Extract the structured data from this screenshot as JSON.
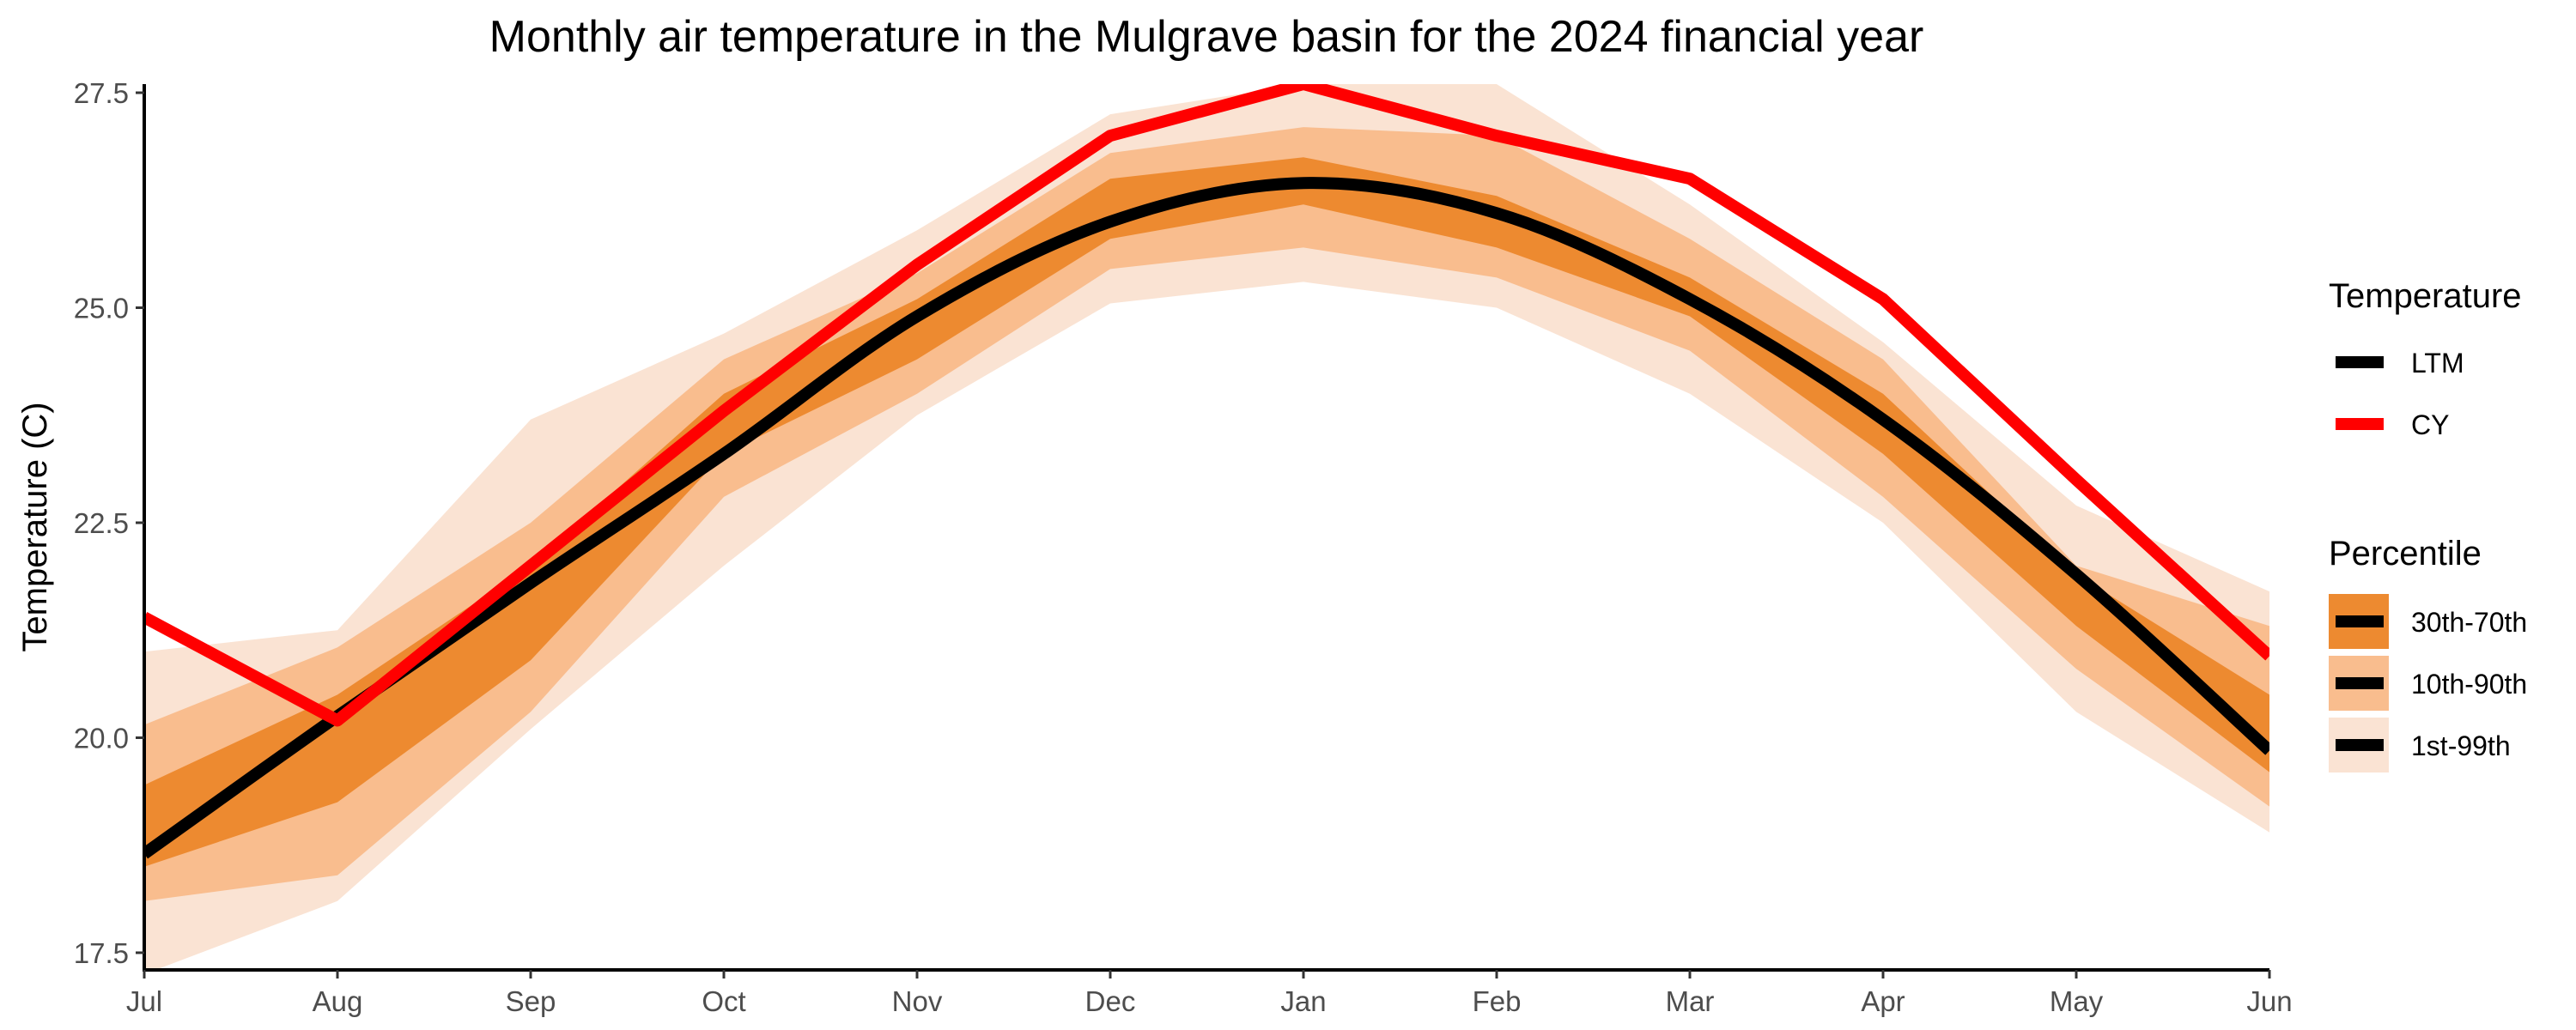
{
  "chart_data": {
    "type": "line",
    "title": "Monthly air temperature in the Mulgrave basin for the 2024 financial year",
    "xlabel": "",
    "ylabel": "Temperature (C)",
    "categories": [
      "Jul",
      "Aug",
      "Sep",
      "Oct",
      "Nov",
      "Dec",
      "Jan",
      "Feb",
      "Mar",
      "Apr",
      "May",
      "Jun"
    ],
    "ylim": [
      17.3,
      27.6
    ],
    "yticks": [
      "17.5",
      "20.0",
      "22.5",
      "25.0",
      "27.5"
    ],
    "ytick_values": [
      17.5,
      20.0,
      22.5,
      25.0,
      27.5
    ],
    "grid": false,
    "legend_position": "right",
    "bands": [
      {
        "name": "1st-99th",
        "color": "#fae3d3",
        "lower": [
          17.25,
          18.1,
          20.1,
          22.0,
          23.75,
          25.05,
          25.3,
          25.0,
          24.0,
          22.5,
          20.3,
          18.9
        ],
        "upper": [
          21.0,
          21.25,
          23.7,
          24.7,
          25.9,
          27.25,
          27.6,
          27.6,
          26.2,
          24.6,
          22.7,
          21.7
        ]
      },
      {
        "name": "10th-90th",
        "color": "#f9bd8e",
        "lower": [
          18.1,
          18.4,
          20.3,
          22.8,
          24.0,
          25.45,
          25.7,
          25.35,
          24.5,
          22.8,
          20.8,
          19.2
        ],
        "upper": [
          20.15,
          21.05,
          22.5,
          24.4,
          25.4,
          26.8,
          27.1,
          27.0,
          25.8,
          24.4,
          22.0,
          21.3
        ]
      },
      {
        "name": "30th-70th",
        "color": "#ed8a30",
        "lower": [
          18.5,
          19.25,
          20.9,
          23.3,
          24.4,
          25.8,
          26.2,
          25.7,
          24.9,
          23.3,
          21.3,
          19.6
        ],
        "upper": [
          19.45,
          20.5,
          22.0,
          24.0,
          25.1,
          26.5,
          26.75,
          26.3,
          25.35,
          24.0,
          21.9,
          20.5
        ]
      }
    ],
    "series": [
      {
        "name": "LTM",
        "color": "#000000",
        "values": [
          18.65,
          20.25,
          21.8,
          23.3,
          24.9,
          26.0,
          26.45,
          26.1,
          25.1,
          23.7,
          21.9,
          19.85
        ]
      },
      {
        "name": "CY",
        "color": "#ff0000",
        "values": [
          21.4,
          20.2,
          22.0,
          23.8,
          25.5,
          27.0,
          27.6,
          27.0,
          26.5,
          25.1,
          23.0,
          20.95
        ]
      }
    ],
    "legend": {
      "temperature_title": "Temperature",
      "temperature_items": [
        {
          "label": "LTM",
          "color": "#000000"
        },
        {
          "label": "CY",
          "color": "#ff0000"
        }
      ],
      "percentile_title": "Percentile",
      "percentile_items": [
        {
          "label": "30th-70th",
          "fill": "#ed8a30"
        },
        {
          "label": "10th-90th",
          "fill": "#f9bd8e"
        },
        {
          "label": "1st-99th",
          "fill": "#fae3d3"
        }
      ]
    }
  }
}
